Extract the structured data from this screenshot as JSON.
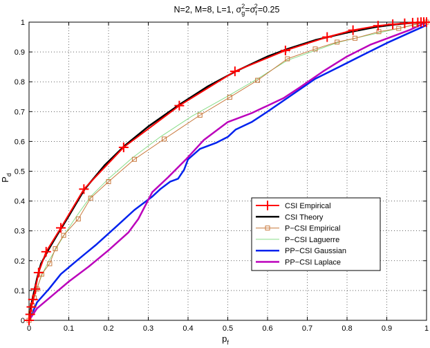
{
  "chart_data": {
    "type": "line",
    "title": {
      "prefix": "N=2, M=8, L=1, σ",
      "g_sub": "g",
      "g_sup": "2",
      "mid": "=σ",
      "f_sub": "f",
      "f_sup": "2",
      "suffix": "=0.25"
    },
    "xlabel": {
      "main": "p",
      "sub": "f"
    },
    "ylabel": {
      "main": "P",
      "sub": "d"
    },
    "xlim": [
      0,
      1
    ],
    "ylim": [
      0,
      1
    ],
    "xticks": [
      0,
      0.1,
      0.2,
      0.3,
      0.4,
      0.5,
      0.6,
      0.7,
      0.8,
      0.9,
      1
    ],
    "xtick_labels": [
      "0",
      "0.1",
      "0.2",
      "0.3",
      "0.4",
      "0.5",
      "0.6",
      "0.7",
      "0.8",
      "0.9",
      "1"
    ],
    "yticks": [
      0,
      0.1,
      0.2,
      0.3,
      0.4,
      0.5,
      0.6,
      0.7,
      0.8,
      0.9,
      1
    ],
    "ytick_labels": [
      "0",
      "0.1",
      "0.2",
      "0.3",
      "0.4",
      "0.5",
      "0.6",
      "0.7",
      "0.8",
      "0.9",
      "1"
    ],
    "grid": true,
    "legend_position": "lower-right",
    "series": [
      {
        "name": "CSI Empirical",
        "color": "#ff0000",
        "marker": "plus",
        "line_width": 2,
        "x": [
          0,
          0.003,
          0.006,
          0.01,
          0.016,
          0.024,
          0.043,
          0.08,
          0.138,
          0.238,
          0.378,
          0.518,
          0.645,
          0.75,
          0.815,
          0.878,
          0.915,
          0.945,
          0.965,
          0.978,
          0.986,
          0.993,
          1
        ],
        "y": [
          0,
          0.02,
          0.045,
          0.07,
          0.105,
          0.16,
          0.23,
          0.31,
          0.44,
          0.58,
          0.72,
          0.835,
          0.905,
          0.95,
          0.973,
          0.988,
          0.993,
          0.996,
          0.998,
          0.999,
          1,
          1,
          1
        ]
      },
      {
        "name": "CSI Theory",
        "color": "#000000",
        "marker": "none",
        "line_width": 2.5,
        "x": [
          0,
          0.005,
          0.01,
          0.02,
          0.03,
          0.05,
          0.07,
          0.1,
          0.14,
          0.19,
          0.24,
          0.3,
          0.38,
          0.45,
          0.52,
          0.6,
          0.65,
          0.72,
          0.8,
          0.87,
          0.92,
          0.96,
          1
        ],
        "y": [
          0,
          0.05,
          0.08,
          0.14,
          0.19,
          0.24,
          0.285,
          0.35,
          0.44,
          0.52,
          0.585,
          0.65,
          0.725,
          0.785,
          0.835,
          0.885,
          0.91,
          0.94,
          0.965,
          0.983,
          0.992,
          0.997,
          1
        ]
      },
      {
        "name": "P−CSI Empirical",
        "color": "#c8783c",
        "marker": "square",
        "line_width": 1,
        "x": [
          0,
          0.004,
          0.008,
          0.013,
          0.02,
          0.032,
          0.052,
          0.066,
          0.087,
          0.124,
          0.155,
          0.2,
          0.265,
          0.34,
          0.43,
          0.505,
          0.575,
          0.65,
          0.72,
          0.775,
          0.82,
          0.88,
          0.93,
          0.97,
          1
        ],
        "y": [
          0,
          0.025,
          0.05,
          0.075,
          0.105,
          0.155,
          0.19,
          0.24,
          0.285,
          0.34,
          0.41,
          0.465,
          0.54,
          0.608,
          0.688,
          0.748,
          0.805,
          0.877,
          0.91,
          0.933,
          0.946,
          0.968,
          0.979,
          0.992,
          1
        ]
      },
      {
        "name": "P−CSI Laguerre",
        "color": "#88dd88",
        "marker": "none",
        "line_width": 1,
        "x": [
          0,
          0.005,
          0.01,
          0.02,
          0.035,
          0.05,
          0.07,
          0.09,
          0.12,
          0.155,
          0.2,
          0.26,
          0.33,
          0.41,
          0.5,
          0.575,
          0.65,
          0.72,
          0.78,
          0.84,
          0.9,
          0.95,
          1
        ],
        "y": [
          0,
          0.035,
          0.06,
          0.11,
          0.16,
          0.2,
          0.245,
          0.29,
          0.35,
          0.415,
          0.475,
          0.545,
          0.615,
          0.685,
          0.752,
          0.81,
          0.872,
          0.905,
          0.933,
          0.952,
          0.97,
          0.985,
          1
        ]
      },
      {
        "name": "PP−CSI Gaussian",
        "color": "#0022ee",
        "marker": "none",
        "line_width": 2.5,
        "x": [
          0,
          0.02,
          0.05,
          0.08,
          0.12,
          0.17,
          0.22,
          0.265,
          0.285,
          0.31,
          0.33,
          0.355,
          0.375,
          0.39,
          0.4,
          0.43,
          0.47,
          0.5,
          0.52,
          0.56,
          0.6,
          0.66,
          0.72,
          0.78,
          0.84,
          0.9,
          0.95,
          1
        ],
        "y": [
          0,
          0.06,
          0.105,
          0.155,
          0.2,
          0.255,
          0.315,
          0.37,
          0.39,
          0.415,
          0.44,
          0.465,
          0.475,
          0.505,
          0.54,
          0.575,
          0.595,
          0.615,
          0.64,
          0.665,
          0.7,
          0.755,
          0.81,
          0.85,
          0.89,
          0.93,
          0.96,
          0.99
        ]
      },
      {
        "name": "PP−CSI Laplace",
        "color": "#bb00bb",
        "marker": "none",
        "line_width": 2.5,
        "x": [
          0,
          0.02,
          0.06,
          0.1,
          0.15,
          0.2,
          0.25,
          0.275,
          0.31,
          0.35,
          0.395,
          0.44,
          0.5,
          0.56,
          0.6,
          0.64,
          0.68,
          0.74,
          0.8,
          0.86,
          0.92,
          0.96,
          1
        ],
        "y": [
          0,
          0.04,
          0.085,
          0.13,
          0.18,
          0.235,
          0.295,
          0.34,
          0.43,
          0.48,
          0.54,
          0.605,
          0.665,
          0.695,
          0.72,
          0.745,
          0.78,
          0.835,
          0.885,
          0.925,
          0.955,
          0.975,
          1
        ]
      }
    ]
  }
}
